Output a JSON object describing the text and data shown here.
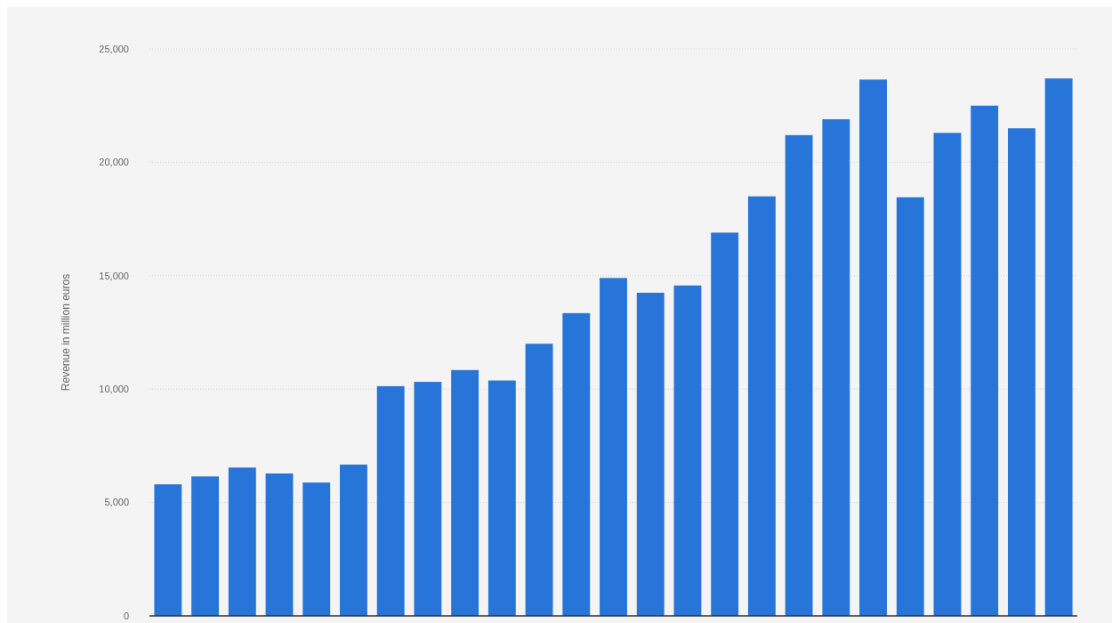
{
  "chart_data": {
    "type": "bar",
    "ylabel": "Revenue in million euros",
    "categories": [
      null,
      null,
      null,
      null,
      null,
      null,
      null,
      null,
      null,
      null,
      null,
      null,
      null,
      null,
      null,
      null,
      null,
      null,
      null,
      null,
      null,
      null,
      null,
      null,
      null
    ],
    "values": [
      5800,
      6150,
      6540,
      6280,
      5880,
      6670,
      10130,
      10320,
      10840,
      10380,
      12000,
      13350,
      14900,
      14250,
      14570,
      16900,
      18500,
      21200,
      21900,
      23650,
      18460,
      21300,
      22500,
      21500,
      23700
    ],
    "color": "#2775d9",
    "ylim": [
      0,
      25000
    ],
    "yticks": [
      {
        "value": 0,
        "label": "0"
      },
      {
        "value": 5000,
        "label": "5,000"
      },
      {
        "value": 10000,
        "label": "10,000"
      },
      {
        "value": 15000,
        "label": "15,000"
      },
      {
        "value": 20000,
        "label": "20,000"
      },
      {
        "value": 25000,
        "label": "25,000"
      }
    ],
    "grid": "y"
  }
}
